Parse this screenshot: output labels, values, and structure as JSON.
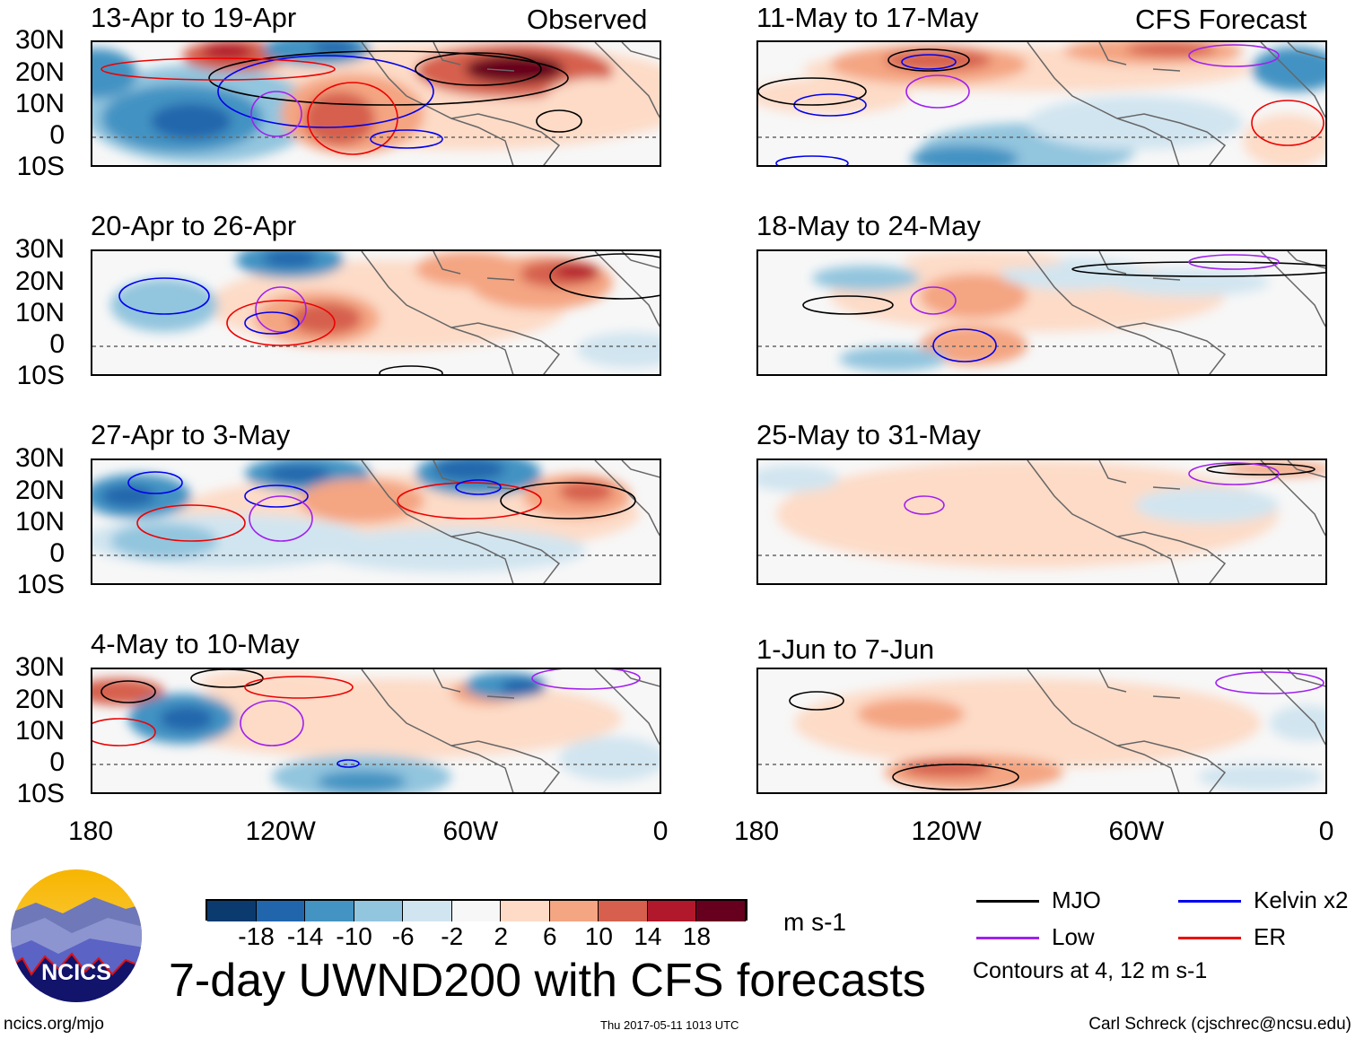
{
  "panel_group_labels": {
    "observed": "Observed",
    "forecast": "CFS Forecast"
  },
  "panels": [
    {
      "title": "13-Apr to 19-Apr",
      "type": "observed"
    },
    {
      "title": "20-Apr to 26-Apr",
      "type": "observed"
    },
    {
      "title": "27-Apr to 3-May",
      "type": "observed"
    },
    {
      "title": "4-May to 10-May",
      "type": "observed"
    },
    {
      "title": "11-May to 17-May",
      "type": "forecast"
    },
    {
      "title": "18-May to 24-May",
      "type": "forecast"
    },
    {
      "title": "25-May to 31-May",
      "type": "forecast"
    },
    {
      "title": "1-Jun to 7-Jun",
      "type": "forecast"
    }
  ],
  "lat_labels": [
    "30N",
    "20N",
    "10N",
    "0",
    "10S"
  ],
  "lon_labels": [
    "180",
    "120W",
    "60W",
    "0"
  ],
  "colorbar": {
    "colors": [
      "#0b3a6e",
      "#2166ac",
      "#4393c3",
      "#92c5de",
      "#d1e5f0",
      "#f7f7f7",
      "#fddbc7",
      "#f4a582",
      "#d6604d",
      "#b2182b",
      "#67001f"
    ],
    "labels": [
      "-18",
      "-14",
      "-10",
      "-6",
      "-2",
      "2",
      "6",
      "10",
      "14",
      "18"
    ],
    "units": "m s-1"
  },
  "legend": {
    "items": [
      {
        "label": "MJO",
        "color": "#000000"
      },
      {
        "label": "Kelvin x2",
        "color": "#0000ee"
      },
      {
        "label": "Low",
        "color": "#a020f0"
      },
      {
        "label": "ER",
        "color": "#ee0000"
      }
    ],
    "note": "Contours at 4, 12 m s-1"
  },
  "title": "7-day UWND200 with CFS forecasts",
  "logo_text": "NCICS",
  "footer": {
    "left": "ncics.org/mjo",
    "center": "Thu 2017-05-11 1013 UTC",
    "right": "Carl Schreck (cjschrec@ncsu.edu)"
  }
}
